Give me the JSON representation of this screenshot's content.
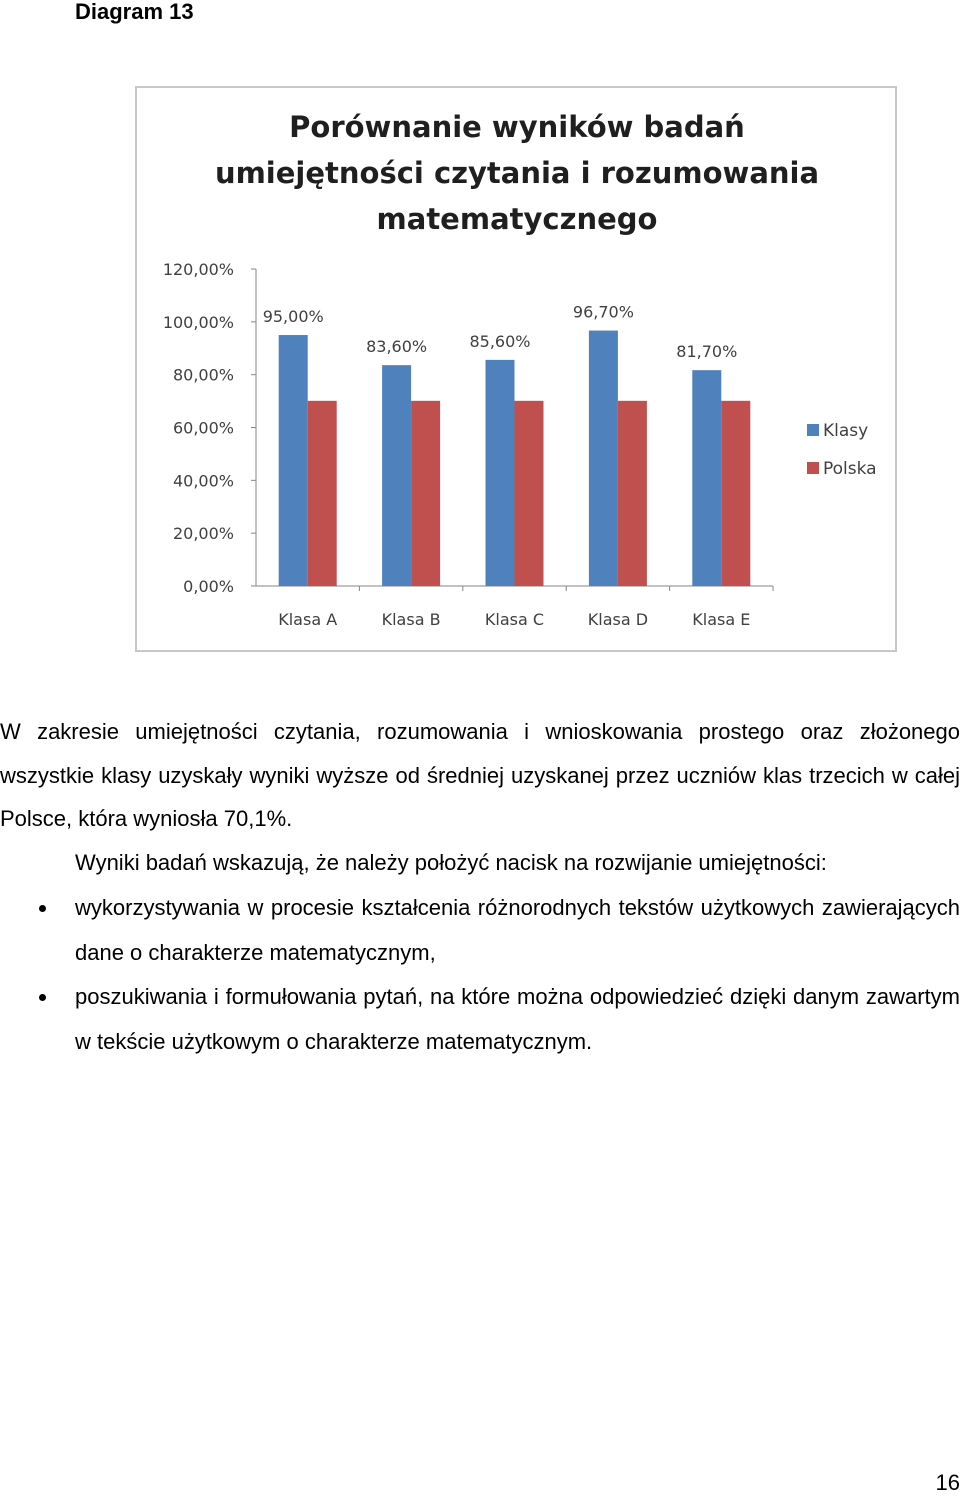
{
  "heading": "Diagram 13",
  "chart_data": {
    "type": "bar",
    "title": "Porównanie wyników badań umiejętności czytania i rozumowania matematycznego",
    "title_lines": [
      "Porównanie wyników badań",
      "umiejętności czytania i rozumowania",
      "matematycznego"
    ],
    "categories": [
      "Klasa A",
      "Klasa B",
      "Klasa C",
      "Klasa D",
      "Klasa E"
    ],
    "series": [
      {
        "name": "Klasy",
        "color": "#4f81bd",
        "values": [
          95.0,
          83.6,
          85.6,
          96.7,
          81.7
        ],
        "labels": [
          "95,00%",
          "83,60%",
          "85,60%",
          "96,70%",
          "81,70%"
        ]
      },
      {
        "name": "Polska",
        "color": "#c0504d",
        "values": [
          70.1,
          70.1,
          70.1,
          70.1,
          70.1
        ]
      }
    ],
    "ylim": [
      0,
      120
    ],
    "yticks": [
      "0,00%",
      "20,00%",
      "40,00%",
      "60,00%",
      "80,00%",
      "100,00%",
      "120,00%"
    ],
    "grid": false,
    "legend_position": "right"
  },
  "paragraph1": "W zakresie umiejętności czytania, rozumowania i wnioskowania prostego oraz złożonego wszystkie klasy uzyskały wyniki wyższe od średniej uzyskanej przez uczniów klas trzecich w całej Polsce, która wyniosła 70,1%.",
  "paragraph2": "Wyniki badań wskazują, że należy położyć nacisk na rozwijanie umiejętności:",
  "bullets": [
    "wykorzystywania w procesie kształcenia różnorodnych tekstów użytkowych zawierających dane o charakterze matematycznym,",
    "poszukiwania i formułowania pytań, na które można odpowiedzieć dzięki danym zawartym w tekście użytkowym o charakterze matematycznym."
  ],
  "page_number": "16"
}
